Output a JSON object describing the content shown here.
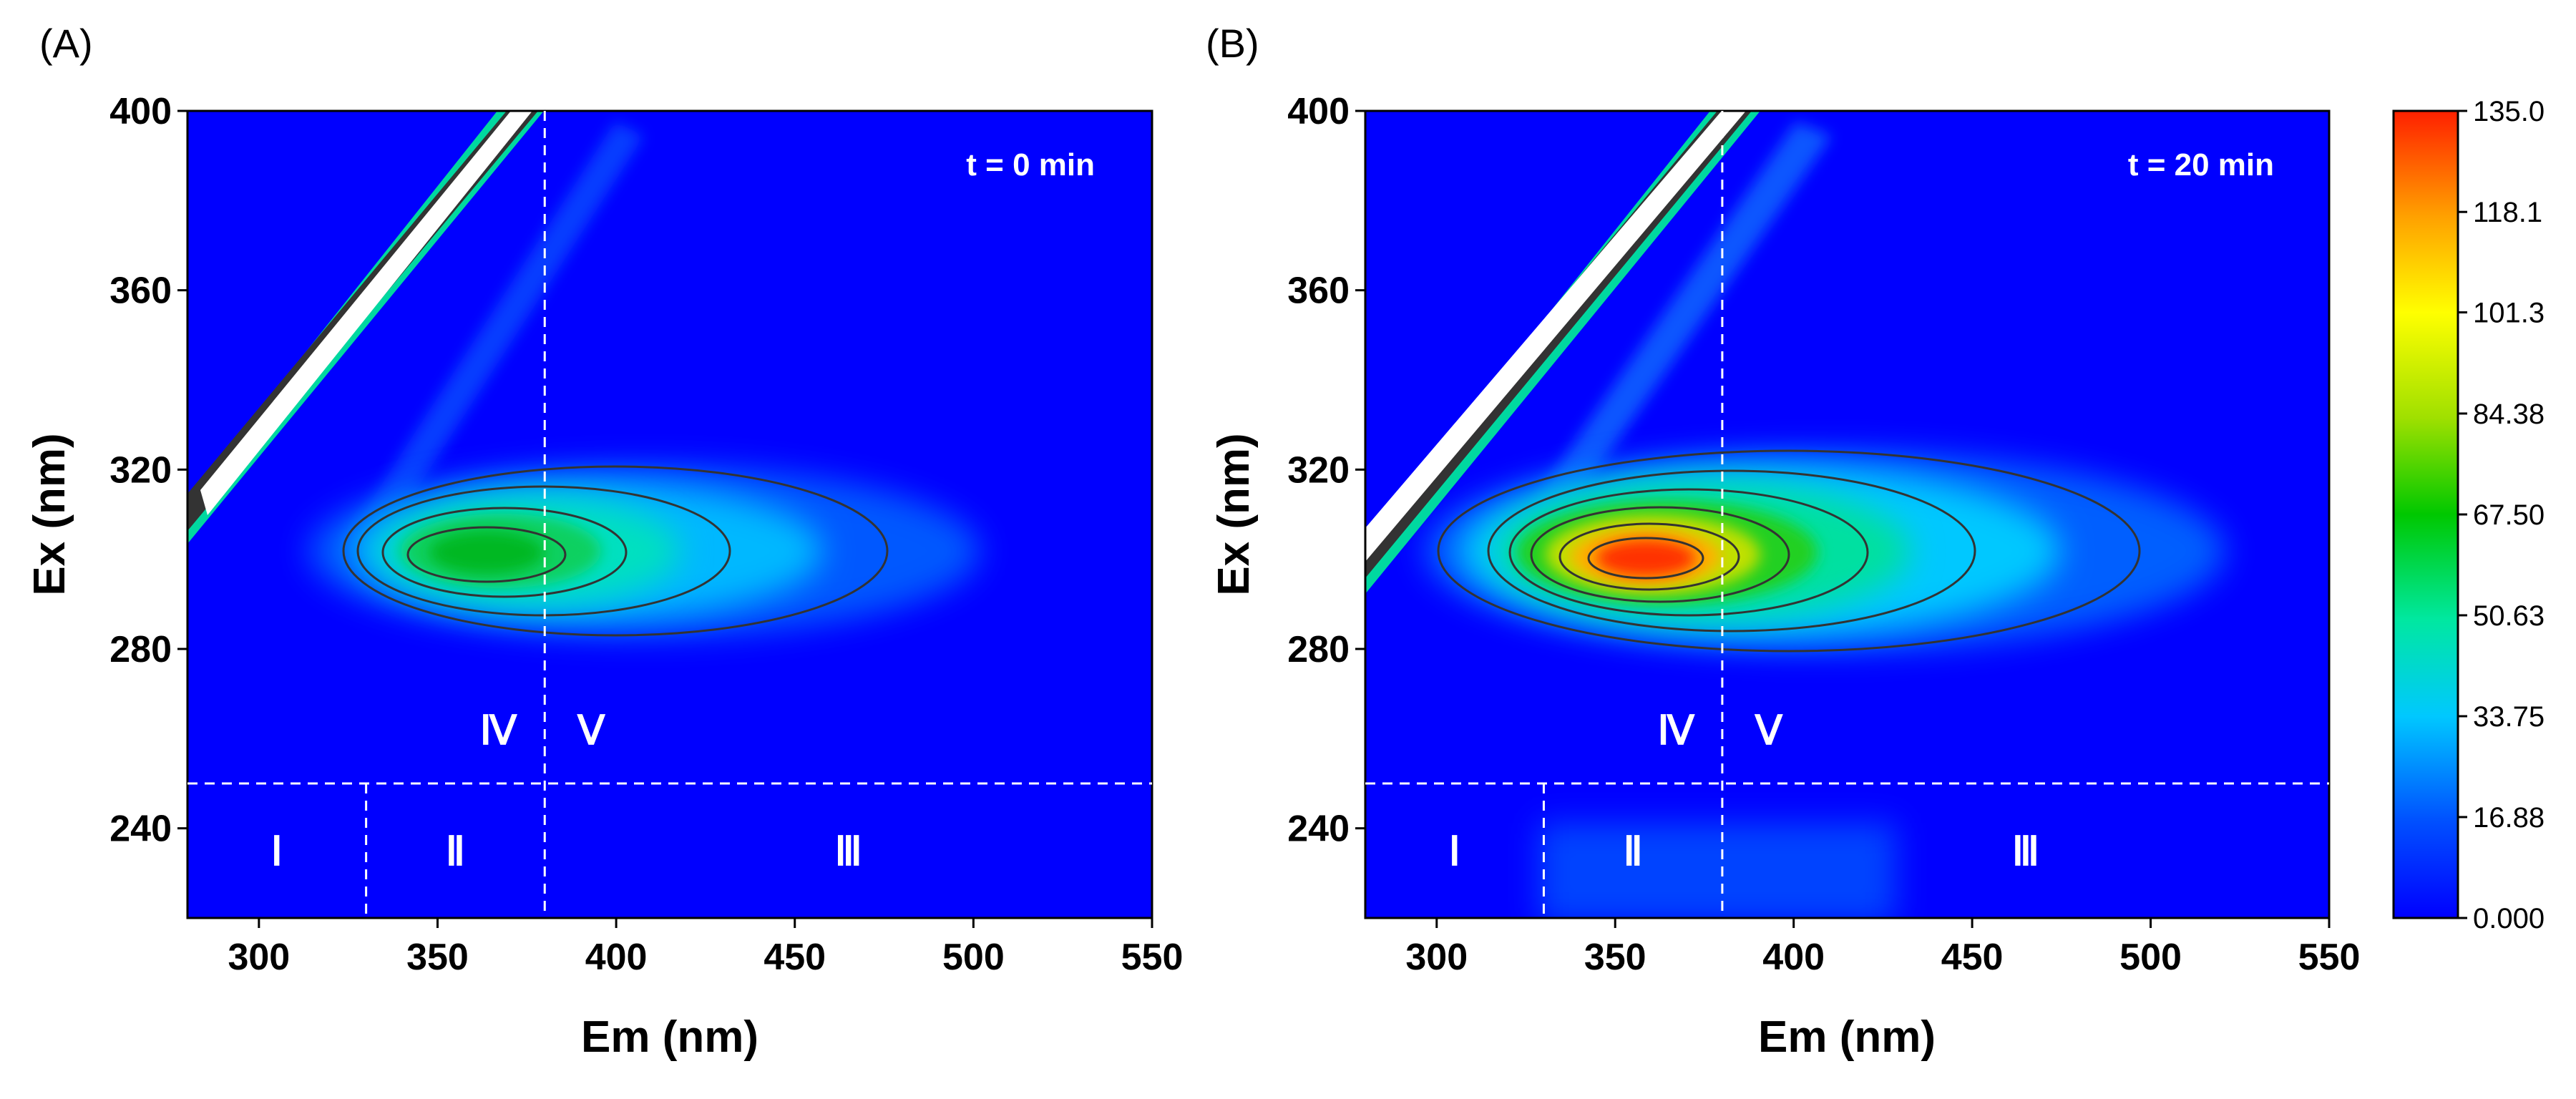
{
  "chart_data": [
    {
      "type": "heatmap",
      "panel_label": "(A)",
      "annotation": "t = 0 min",
      "xlabel": "Em (nm)",
      "ylabel": "Ex (nm)",
      "xlim": [
        280,
        550
      ],
      "ylim": [
        220,
        400
      ],
      "xticks": [
        "300",
        "350",
        "400",
        "450",
        "500",
        "550"
      ],
      "yticks": [
        "240",
        "280",
        "320",
        "360",
        "400"
      ],
      "peak": {
        "em": 363,
        "ex": 298,
        "intensity": 78
      },
      "region_lines": {
        "ex_boundary": 250,
        "em_boundary_low": 330,
        "em_boundary_high": 380
      },
      "regions": [
        {
          "label": "Ⅰ",
          "em": 305,
          "ex": 235
        },
        {
          "label": "Ⅱ",
          "em": 355,
          "ex": 235
        },
        {
          "label": "Ⅲ",
          "em": 465,
          "ex": 235
        },
        {
          "label": "Ⅳ",
          "em": 367,
          "ex": 262
        },
        {
          "label": "Ⅴ",
          "em": 393,
          "ex": 262
        }
      ]
    },
    {
      "type": "heatmap",
      "panel_label": "(B)",
      "annotation": "t = 20 min",
      "xlabel": "Em (nm)",
      "ylabel": "Ex (nm)",
      "xlim": [
        280,
        550
      ],
      "ylim": [
        220,
        400
      ],
      "xticks": [
        "300",
        "350",
        "400",
        "450",
        "500",
        "550"
      ],
      "yticks": [
        "240",
        "280",
        "320",
        "360",
        "400"
      ],
      "peak": {
        "em": 360,
        "ex": 298,
        "intensity": 128
      },
      "region_lines": {
        "ex_boundary": 250,
        "em_boundary_low": 330,
        "em_boundary_high": 380
      },
      "regions": [
        {
          "label": "Ⅰ",
          "em": 305,
          "ex": 235
        },
        {
          "label": "Ⅱ",
          "em": 355,
          "ex": 235
        },
        {
          "label": "Ⅲ",
          "em": 465,
          "ex": 235
        },
        {
          "label": "Ⅳ",
          "em": 367,
          "ex": 262
        },
        {
          "label": "Ⅴ",
          "em": 393,
          "ex": 262
        }
      ]
    }
  ],
  "colorbar": {
    "min": 0,
    "max": 135,
    "ticks": [
      "135.0",
      "118.1",
      "101.3",
      "84.38",
      "67.50",
      "50.63",
      "33.75",
      "16.88",
      "0.000"
    ],
    "colors": [
      "#0000ff",
      "#0050ff",
      "#00c8ff",
      "#00e8a0",
      "#00c800",
      "#a0e000",
      "#ffff00",
      "#ffa000",
      "#ff2000"
    ]
  }
}
